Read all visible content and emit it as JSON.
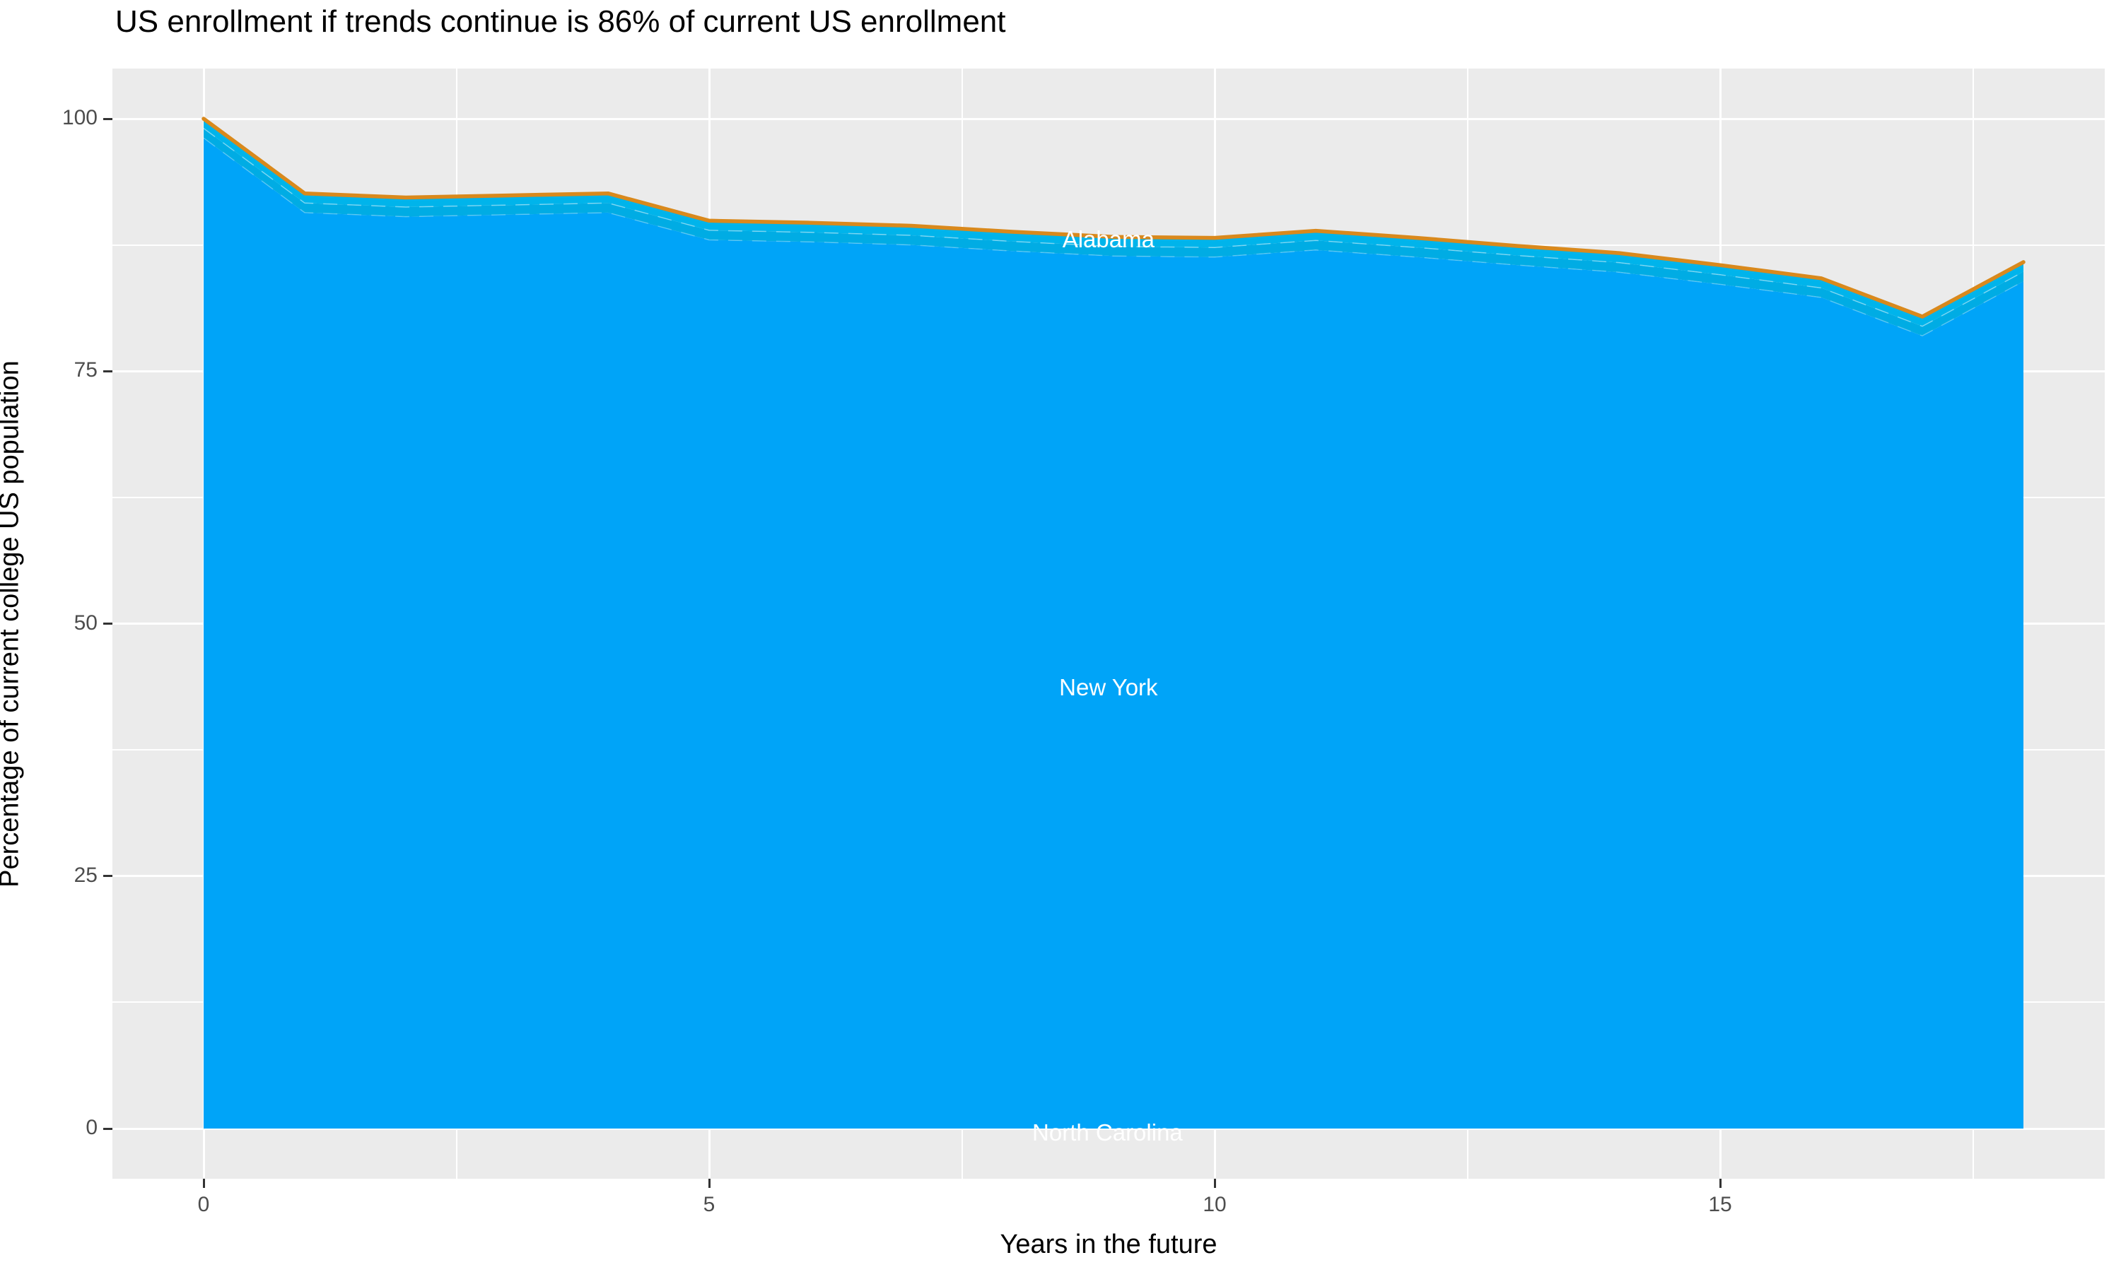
{
  "page": {
    "background": "#FFFFFF"
  },
  "title": {
    "text": "US enrollment if trends continue is 86% of current US enrollment"
  },
  "panel": {
    "background": "#EBEBEB",
    "grid_color": "#FFFFFF",
    "tick_color": "#333333",
    "tick_label_color": "#4D4D4D"
  },
  "axes": {
    "x": {
      "title": "Years in the future",
      "tick_values": [
        0,
        5,
        10,
        15
      ],
      "tick_labels": [
        "0",
        "5",
        "10",
        "15"
      ],
      "minor_tick_values": [
        2.5,
        7.5,
        12.5,
        17.5
      ],
      "range": [
        0,
        18
      ]
    },
    "y": {
      "title": "Percentage of current college US population",
      "tick_values": [
        0,
        25,
        50,
        75,
        100
      ],
      "tick_labels": [
        "0",
        "25",
        "50",
        "75",
        "100"
      ],
      "minor_tick_values": [
        12.5,
        37.5,
        62.5,
        87.5
      ],
      "range": [
        0,
        100
      ]
    }
  },
  "chart_data": {
    "type": "area",
    "stacked": true,
    "title": "US enrollment if trends continue is 86% of current US enrollment",
    "xlabel": "Years in the future",
    "ylabel": "Percentage of current college US population",
    "x": [
      0,
      1,
      2,
      3,
      4,
      5,
      6,
      7,
      8,
      9,
      10,
      11,
      12,
      13,
      14,
      15,
      16,
      17,
      18
    ],
    "series": [
      {
        "name": "total-projected-enrollment-pct",
        "role": "top-line",
        "color": "#D9891C",
        "values": [
          100,
          92.6,
          92.2,
          92.4,
          92.6,
          89.9,
          89.7,
          89.4,
          88.8,
          88.3,
          88.2,
          88.9,
          88.2,
          87.4,
          86.7,
          85.5,
          84.2,
          80.4,
          85.8
        ]
      },
      {
        "name": "upper-state-band",
        "role": "band",
        "fill": "#00B4EB",
        "offset_below_total": 0.95
      },
      {
        "name": "lower-state-band",
        "role": "band",
        "fill": "#00ACE4",
        "offset_below_total": 1.9
      },
      {
        "name": "main-stacked-area",
        "role": "area",
        "fill": "#00A4F8"
      }
    ],
    "separator_color": "rgba(255,255,255,0.45)",
    "annotations": [
      {
        "text": "Alabama",
        "x": 8.95,
        "y": 88.0,
        "color": "#FFFFFF"
      },
      {
        "text": "New York",
        "x": 8.95,
        "y": 43.7,
        "color": "#FFFFFF"
      },
      {
        "text": "North Carolina",
        "x": 8.94,
        "y": -0.4,
        "color": "#FFFFFF"
      }
    ],
    "xlim": [
      0,
      18
    ],
    "ylim": [
      0,
      100
    ],
    "grid": true,
    "legend": "none",
    "final_value_note": "86"
  }
}
